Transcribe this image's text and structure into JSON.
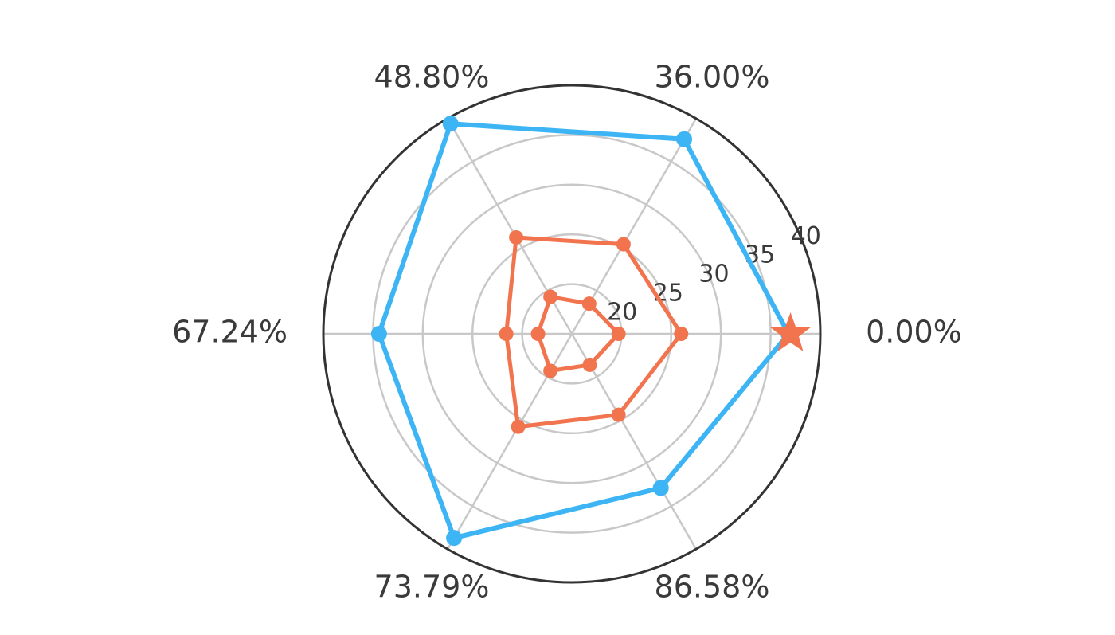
{
  "chart_data": {
    "type": "radar",
    "axes": [
      "0.00%",
      "36.00%",
      "48.80%",
      "67.24%",
      "73.79%",
      "86.58%"
    ],
    "radial_ticks": [
      20,
      25,
      30,
      35,
      40
    ],
    "rlim": [
      15,
      40
    ],
    "grid": true,
    "series": [
      {
        "values": [
          36.8,
          37.6,
          39.4,
          34.4,
          38.7,
          32.9
        ],
        "color": "#3db5f5",
        "marker": "circle"
      },
      {
        "values": [
          26.0,
          25.4,
          26.2,
          21.6,
          25.8,
          24.4
        ],
        "color": "#f2744e",
        "marker": "circle"
      },
      {
        "values": [
          19.7,
          18.5,
          19.3,
          18.4,
          19.3,
          18.6
        ],
        "color": "#f2744e",
        "marker": "circle"
      }
    ],
    "highlight": {
      "axis": "0.00%",
      "value": 37.0,
      "marker": "star",
      "color": "#f2744e"
    },
    "colors": {
      "grid": "#c8c8c8",
      "frame": "#333333",
      "text": "#3a3a3a"
    }
  }
}
